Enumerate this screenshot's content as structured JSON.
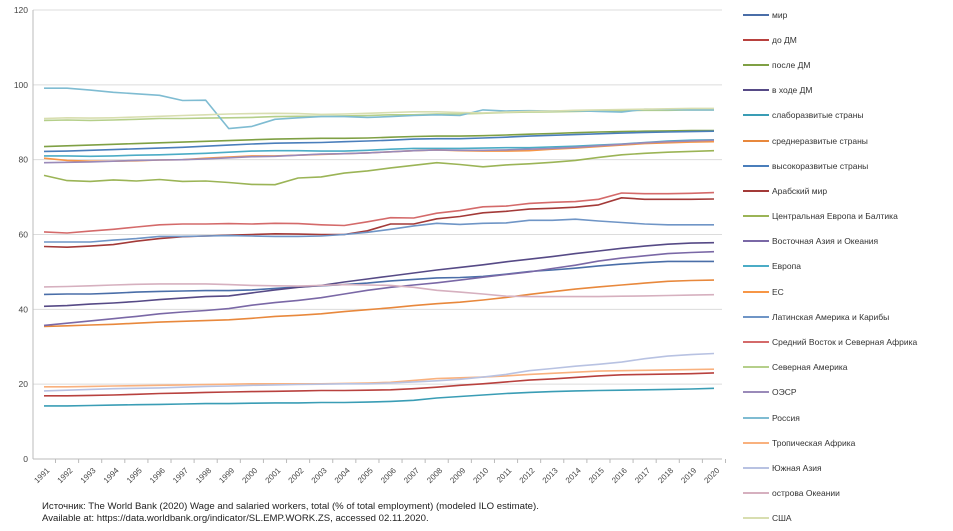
{
  "chart_data": {
    "type": "line",
    "title": "",
    "xlabel": "",
    "ylabel": "",
    "ylim": [
      0,
      120
    ],
    "yticks": [
      0,
      20,
      40,
      60,
      80,
      100,
      120
    ],
    "grid": true,
    "legend_position": "right",
    "x": [
      "1991",
      "1992",
      "1993",
      "1994",
      "1995",
      "1996",
      "1997",
      "1998",
      "1999",
      "2000",
      "2001",
      "2002",
      "2003",
      "2004",
      "2005",
      "2006",
      "2007",
      "2008",
      "2009",
      "2010",
      "2011",
      "2012",
      "2013",
      "2014",
      "2015",
      "2016",
      "2017",
      "2018",
      "2019",
      "2020"
    ],
    "series": [
      {
        "name": "мир",
        "color": "#4a6ea8",
        "values": [
          44.0,
          44.1,
          44.1,
          44.3,
          44.6,
          44.8,
          44.9,
          45.0,
          45.0,
          45.2,
          45.6,
          46.0,
          46.3,
          46.6,
          47.0,
          47.6,
          48.0,
          48.4,
          48.5,
          48.8,
          49.4,
          50.1,
          50.5,
          51.0,
          51.6,
          52.1,
          52.5,
          52.8,
          52.8,
          52.8
        ]
      },
      {
        "name": "до ДМ",
        "color": "#b8413e",
        "values": [
          16.9,
          16.9,
          17.0,
          17.1,
          17.3,
          17.5,
          17.6,
          17.8,
          17.9,
          18.0,
          18.1,
          18.2,
          18.3,
          18.3,
          18.4,
          18.5,
          18.8,
          19.2,
          19.7,
          20.1,
          20.6,
          21.1,
          21.4,
          21.8,
          22.2,
          22.5,
          22.6,
          22.7,
          22.8,
          23.0
        ]
      },
      {
        "name": "после ДМ",
        "color": "#7fa044",
        "values": [
          83.5,
          83.7,
          83.9,
          84.1,
          84.3,
          84.5,
          84.7,
          84.9,
          85.1,
          85.3,
          85.5,
          85.6,
          85.7,
          85.7,
          85.8,
          86.0,
          86.2,
          86.3,
          86.3,
          86.4,
          86.6,
          86.8,
          87.0,
          87.2,
          87.4,
          87.5,
          87.6,
          87.7,
          87.8,
          87.8
        ]
      },
      {
        "name": "в ходе ДМ",
        "color": "#564a86",
        "values": [
          40.8,
          41.0,
          41.4,
          41.7,
          42.1,
          42.6,
          43.0,
          43.4,
          43.6,
          44.4,
          45.2,
          45.9,
          46.4,
          47.3,
          48.1,
          48.9,
          49.7,
          50.5,
          51.2,
          51.9,
          52.7,
          53.4,
          54.1,
          54.9,
          55.6,
          56.3,
          56.9,
          57.4,
          57.7,
          57.8
        ]
      },
      {
        "name": "слаборазвитые страны",
        "color": "#3a9db5",
        "values": [
          14.2,
          14.2,
          14.3,
          14.4,
          14.5,
          14.6,
          14.7,
          14.8,
          14.8,
          14.9,
          15.0,
          15.0,
          15.1,
          15.1,
          15.2,
          15.4,
          15.7,
          16.3,
          16.7,
          17.1,
          17.5,
          17.8,
          18.0,
          18.2,
          18.3,
          18.4,
          18.5,
          18.6,
          18.7,
          18.9
        ]
      },
      {
        "name": "среднеразвитые страны",
        "color": "#e8883c",
        "values": [
          35.4,
          35.6,
          35.8,
          36.0,
          36.3,
          36.6,
          36.8,
          37.0,
          37.2,
          37.6,
          38.1,
          38.4,
          38.8,
          39.4,
          39.9,
          40.4,
          41.0,
          41.5,
          41.9,
          42.5,
          43.2,
          44.0,
          44.7,
          45.4,
          46.0,
          46.5,
          47.0,
          47.5,
          47.7,
          47.8
        ]
      },
      {
        "name": "высокоразвитые страны",
        "color": "#4a7ebb",
        "values": [
          82.2,
          82.3,
          82.5,
          82.7,
          82.9,
          83.1,
          83.3,
          83.6,
          83.9,
          84.2,
          84.4,
          84.5,
          84.6,
          84.8,
          85.0,
          85.2,
          85.5,
          85.6,
          85.6,
          85.8,
          86.0,
          86.3,
          86.5,
          86.7,
          86.9,
          87.1,
          87.3,
          87.4,
          87.5,
          87.6
        ]
      },
      {
        "name": "Арабский мир",
        "color": "#a33a38",
        "values": [
          56.8,
          56.6,
          56.9,
          57.3,
          58.2,
          58.9,
          59.4,
          59.6,
          59.8,
          60.0,
          60.2,
          60.1,
          60.0,
          60.0,
          61.0,
          62.8,
          62.8,
          64.2,
          64.8,
          65.8,
          66.2,
          66.8,
          67.0,
          67.3,
          67.9,
          69.8,
          69.4,
          69.4,
          69.4,
          69.5
        ]
      },
      {
        "name": "Центральная Европа и Балтика",
        "color": "#9bb456",
        "values": [
          75.8,
          74.4,
          74.2,
          74.6,
          74.3,
          74.7,
          74.2,
          74.3,
          73.9,
          73.4,
          73.3,
          75.1,
          75.4,
          76.4,
          77.0,
          77.8,
          78.5,
          79.2,
          78.7,
          78.1,
          78.6,
          78.9,
          79.3,
          79.8,
          80.6,
          81.3,
          81.7,
          82.0,
          82.2,
          82.4
        ]
      },
      {
        "name": "Восточная Азия и Океания",
        "color": "#7a68a6",
        "values": [
          35.7,
          36.3,
          36.9,
          37.5,
          38.1,
          38.8,
          39.3,
          39.7,
          40.2,
          41.1,
          41.8,
          42.4,
          43.1,
          44.1,
          45.1,
          45.9,
          46.5,
          47.1,
          47.8,
          48.6,
          49.3,
          50.0,
          50.9,
          51.8,
          52.9,
          53.7,
          54.3,
          54.9,
          55.2,
          55.4
        ]
      },
      {
        "name": "Европа",
        "color": "#4bacc6",
        "values": [
          81.0,
          81.0,
          80.9,
          81.0,
          81.2,
          81.3,
          81.5,
          81.7,
          82.0,
          82.3,
          82.4,
          82.4,
          82.3,
          82.3,
          82.5,
          82.8,
          83.0,
          83.0,
          83.0,
          83.1,
          83.2,
          83.2,
          83.4,
          83.6,
          83.9,
          84.2,
          84.6,
          85.0,
          85.2,
          85.3
        ]
      },
      {
        "name": "ЕС",
        "color": "#f79646",
        "values": [
          80.4,
          79.8,
          79.6,
          79.6,
          79.7,
          79.9,
          80.0,
          80.4,
          80.7,
          81.0,
          81.0,
          81.2,
          81.4,
          81.6,
          81.8,
          82.1,
          82.4,
          82.6,
          82.4,
          82.3,
          82.3,
          82.4,
          82.8,
          83.1,
          83.5,
          83.9,
          84.3,
          84.5,
          84.7,
          84.8
        ]
      },
      {
        "name": "Латинская Америка и Карибы",
        "color": "#6f95c6",
        "values": [
          58.0,
          58.0,
          58.0,
          58.5,
          58.9,
          59.5,
          59.5,
          59.6,
          59.7,
          59.6,
          59.5,
          59.5,
          59.6,
          60.0,
          60.6,
          61.4,
          62.3,
          63.0,
          62.7,
          63.0,
          63.1,
          63.8,
          63.8,
          64.1,
          63.6,
          63.2,
          62.8,
          62.6,
          62.6,
          62.6
        ]
      },
      {
        "name": "Средний Восток и Северная Африка",
        "color": "#d46a6a",
        "values": [
          60.7,
          60.4,
          60.9,
          61.4,
          62.0,
          62.6,
          62.8,
          62.8,
          62.9,
          62.8,
          63.0,
          62.9,
          62.6,
          62.4,
          63.4,
          64.5,
          64.4,
          65.7,
          66.4,
          67.4,
          67.6,
          68.3,
          68.6,
          68.8,
          69.4,
          71.1,
          70.9,
          70.9,
          71.0,
          71.2
        ]
      },
      {
        "name": "Северная Америка",
        "color": "#b5cf8a",
        "values": [
          90.5,
          90.6,
          90.5,
          90.6,
          90.8,
          91.0,
          91.0,
          91.1,
          91.2,
          91.3,
          91.5,
          91.6,
          91.6,
          91.7,
          91.8,
          92.0,
          92.0,
          92.2,
          92.2,
          92.4,
          92.6,
          92.7,
          92.8,
          92.9,
          93.0,
          93.1,
          93.2,
          93.2,
          93.3,
          93.3
        ]
      },
      {
        "name": "ОЭСР",
        "color": "#9a8ab9",
        "values": [
          79.2,
          79.3,
          79.4,
          79.6,
          79.8,
          79.9,
          80.0,
          80.2,
          80.5,
          80.8,
          80.9,
          81.2,
          81.5,
          81.6,
          81.8,
          82.1,
          82.4,
          82.6,
          82.5,
          82.5,
          82.6,
          82.8,
          83.0,
          83.3,
          83.7,
          84.1,
          84.5,
          84.8,
          85.0,
          85.2
        ]
      },
      {
        "name": "Россия",
        "color": "#7fbcd2",
        "values": [
          99.1,
          99.1,
          98.6,
          98.0,
          97.6,
          97.2,
          95.8,
          95.9,
          88.3,
          88.9,
          90.8,
          91.2,
          91.5,
          91.5,
          91.3,
          91.5,
          91.8,
          92.0,
          91.8,
          93.3,
          93.0,
          93.1,
          93.0,
          93.1,
          92.9,
          92.7,
          93.5,
          93.4,
          93.3,
          93.3
        ]
      },
      {
        "name": "Тропическая Африка",
        "color": "#f9b17e",
        "values": [
          19.3,
          19.3,
          19.4,
          19.5,
          19.6,
          19.7,
          19.8,
          19.9,
          20.0,
          20.1,
          20.1,
          20.1,
          20.1,
          20.2,
          20.3,
          20.5,
          21.0,
          21.5,
          21.7,
          21.9,
          22.2,
          22.6,
          22.9,
          23.2,
          23.5,
          23.6,
          23.7,
          23.8,
          23.9,
          24.0
        ]
      },
      {
        "name": "Южная Азия",
        "color": "#b8c2e2",
        "values": [
          18.2,
          18.4,
          18.6,
          18.8,
          18.9,
          19.0,
          19.2,
          19.4,
          19.5,
          19.7,
          19.8,
          19.9,
          20.0,
          20.1,
          20.1,
          20.3,
          20.6,
          20.9,
          21.3,
          21.9,
          22.6,
          23.6,
          24.2,
          24.8,
          25.3,
          25.9,
          26.8,
          27.5,
          27.9,
          28.2
        ]
      },
      {
        "name": "острова Океании",
        "color": "#d6b0bf",
        "values": [
          46.0,
          46.1,
          46.3,
          46.5,
          46.7,
          46.8,
          46.8,
          46.8,
          46.6,
          46.4,
          46.3,
          46.2,
          46.4,
          46.6,
          46.5,
          46.4,
          45.9,
          45.1,
          44.6,
          44.1,
          43.5,
          43.4,
          43.4,
          43.4,
          43.4,
          43.5,
          43.6,
          43.7,
          43.8,
          43.9
        ]
      },
      {
        "name": "США",
        "color": "#d8deb0",
        "values": [
          91.0,
          91.2,
          91.1,
          91.2,
          91.4,
          91.6,
          91.8,
          92.0,
          92.2,
          92.3,
          92.4,
          92.3,
          92.1,
          92.2,
          92.4,
          92.6,
          92.8,
          92.8,
          92.6,
          92.5,
          92.7,
          92.9,
          93.0,
          93.2,
          93.3,
          93.4,
          93.5,
          93.6,
          93.7,
          93.7
        ]
      }
    ]
  },
  "source": {
    "line1": "Источник: The World Bank (2020) Wage and salaried workers, total (% of total employment)  (modeled ILO estimate).",
    "line2": "Available at: https://data.worldbank.org/indicator/SL.EMP.WORK.ZS, accessed 02.11.2020."
  }
}
